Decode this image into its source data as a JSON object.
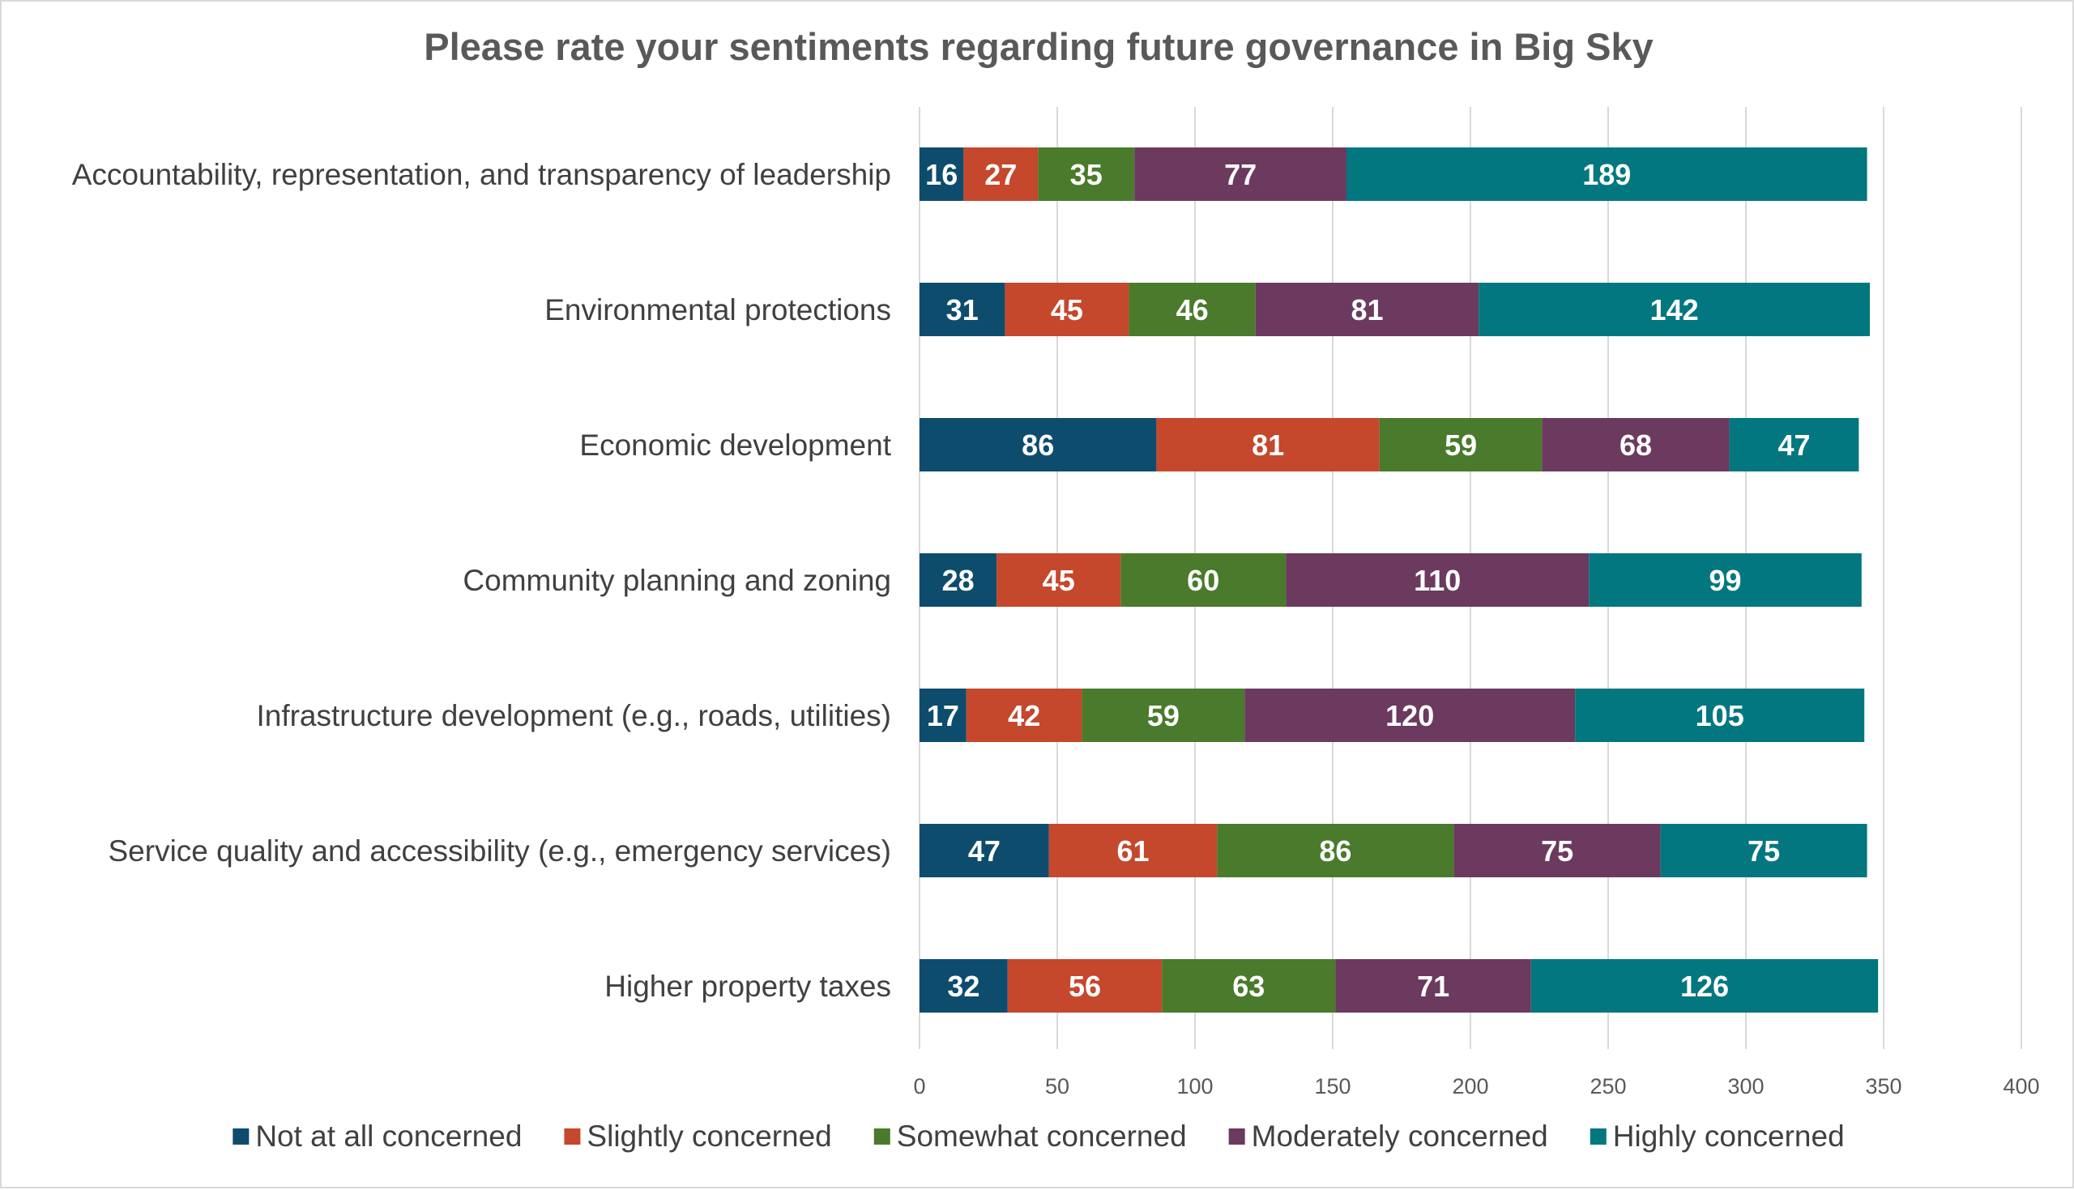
{
  "chart_data": {
    "type": "bar",
    "orientation": "horizontal",
    "stacked": true,
    "title": "Please rate your sentiments regarding future governance in Big Sky",
    "xlabel": "",
    "ylabel": "",
    "xlim": [
      0,
      400
    ],
    "x_ticks": [
      "0",
      "50",
      "100",
      "150",
      "200",
      "250",
      "300",
      "350",
      "400"
    ],
    "grid": true,
    "legend_position": "bottom",
    "categories": [
      "Accountability, representation, and transparency of leadership",
      "Environmental protections",
      "Economic development",
      "Community planning and zoning",
      "Infrastructure development (e.g., roads, utilities)",
      "Service quality and accessibility (e.g., emergency services)",
      "Higher property taxes"
    ],
    "series": [
      {
        "name": "Not at all concerned",
        "color": "#0e4c6e",
        "values": [
          16,
          31,
          86,
          28,
          17,
          47,
          32
        ]
      },
      {
        "name": "Slightly concerned",
        "color": "#c5472c",
        "values": [
          27,
          45,
          81,
          45,
          42,
          61,
          56
        ]
      },
      {
        "name": "Somewhat concerned",
        "color": "#4a7a2b",
        "values": [
          35,
          46,
          59,
          60,
          59,
          86,
          63
        ]
      },
      {
        "name": "Moderately concerned",
        "color": "#6b3a5e",
        "values": [
          77,
          81,
          68,
          110,
          120,
          75,
          71
        ]
      },
      {
        "name": "Highly concerned",
        "color": "#03777f",
        "values": [
          189,
          142,
          47,
          99,
          105,
          75,
          126
        ]
      }
    ]
  }
}
